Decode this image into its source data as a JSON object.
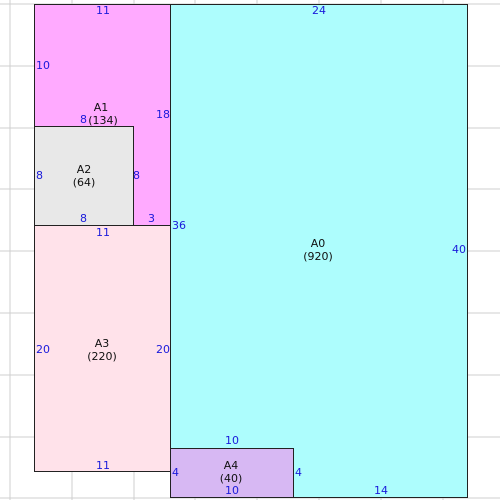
{
  "colors": {
    "grid_line": "#cfcfcf",
    "A0": "#adfdfd",
    "A1": "#ffaaff",
    "A2": "#e8e8e8",
    "A3": "#ffe2ea",
    "A4": "#d7b8f3",
    "dimension_text": "#1a1adb",
    "border": "#222222"
  },
  "regions": [
    {
      "id": "A0",
      "name": "A0",
      "area": "(920)"
    },
    {
      "id": "A1",
      "name": "A1",
      "area": "(134)"
    },
    {
      "id": "A2",
      "name": "A2",
      "area": "(64)"
    },
    {
      "id": "A3",
      "name": "A3",
      "area": "(220)"
    },
    {
      "id": "A4",
      "name": "A4",
      "area": "(40)"
    }
  ],
  "dimensions": {
    "a1_top": "11",
    "a1_left": "10",
    "a1_right": "18",
    "a1_bottom": "8",
    "a2_left": "8",
    "a2_right": "8",
    "a2_bottom": "8",
    "a1_inner": "3",
    "a0_top": "24",
    "a0_right": "40",
    "a0_left": "36",
    "a0_bottom": "14",
    "a3_top": "11",
    "a3_left": "20",
    "a3_right": "20",
    "a3_bottom": "11",
    "a4_top": "10",
    "a4_left": "4",
    "a4_right": "4",
    "a4_bottom": "10"
  }
}
